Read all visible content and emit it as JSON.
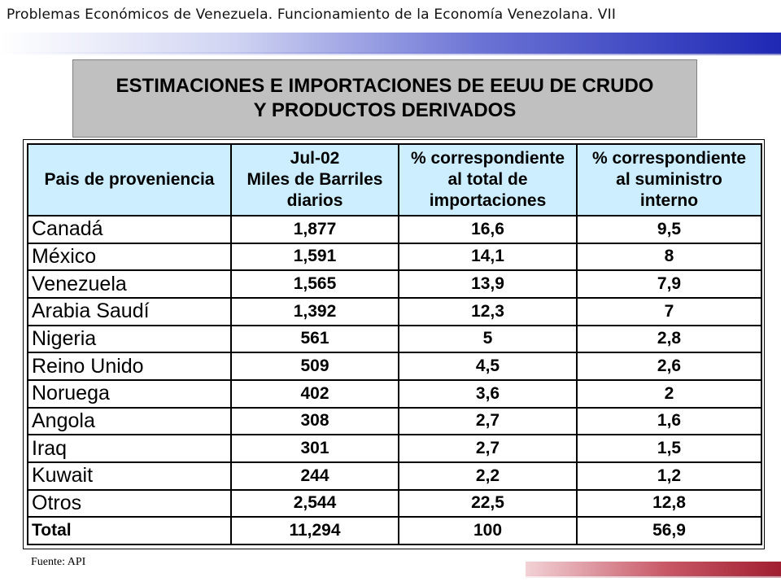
{
  "header": {
    "title": "Problemas Económicos de Venezuela.   Funcionamiento de la Economía Venezolana.  VII"
  },
  "title_box": {
    "line1": "ESTIMACIONES E IMPORTACIONES DE EEUU DE CRUDO",
    "line2": "Y PRODUCTOS DERIVADOS"
  },
  "table": {
    "headers": [
      {
        "lines": [
          "Pais de proveniencia"
        ]
      },
      {
        "lines": [
          "Jul-02",
          "Miles de Barriles",
          "diarios"
        ]
      },
      {
        "lines": [
          "% correspondiente",
          "al total de",
          "importaciones"
        ]
      },
      {
        "lines": [
          "% correspondiente",
          "al suministro",
          "interno"
        ]
      }
    ],
    "rows": [
      {
        "country": "Canadá",
        "barrels": "1,877",
        "pct_imports": "16,6",
        "pct_supply": "9,5"
      },
      {
        "country": "México",
        "barrels": "1,591",
        "pct_imports": "14,1",
        "pct_supply": "8"
      },
      {
        "country": "Venezuela",
        "barrels": "1,565",
        "pct_imports": "13,9",
        "pct_supply": "7,9"
      },
      {
        "country": "Arabia Saudí",
        "barrels": "1,392",
        "pct_imports": "12,3",
        "pct_supply": "7"
      },
      {
        "country": "Nigeria",
        "barrels": "561",
        "pct_imports": "5",
        "pct_supply": "2,8"
      },
      {
        "country": "Reino Unido",
        "barrels": "509",
        "pct_imports": "4,5",
        "pct_supply": "2,6"
      },
      {
        "country": "Noruega",
        "barrels": "402",
        "pct_imports": "3,6",
        "pct_supply": "2"
      },
      {
        "country": "Angola",
        "barrels": "308",
        "pct_imports": "2,7",
        "pct_supply": "1,6"
      },
      {
        "country": "Iraq",
        "barrels": "301",
        "pct_imports": "2,7",
        "pct_supply": "1,5"
      },
      {
        "country": "Kuwait",
        "barrels": "244",
        "pct_imports": "2,2",
        "pct_supply": "1,2"
      },
      {
        "country": "Otros",
        "barrels": "2,544",
        "pct_imports": "22,5",
        "pct_supply": "12,8"
      }
    ],
    "total": {
      "country": "Total",
      "barrels": "11,294",
      "pct_imports": "100",
      "pct_supply": "56,9"
    }
  },
  "source": "Fuente: API",
  "colors": {
    "header_bar_end": "#1d28b4",
    "title_box_bg": "#c0c0c0",
    "table_header_bg": "#cceeff",
    "footer_bar_end": "#a01e30"
  }
}
